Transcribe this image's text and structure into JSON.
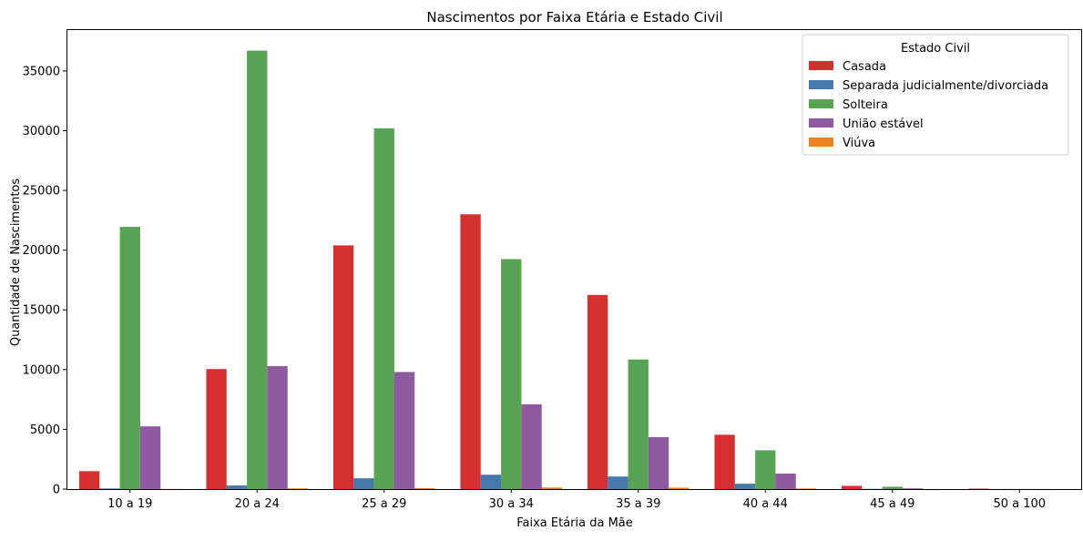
{
  "chart_data": {
    "type": "bar",
    "title": "Nascimentos por Faixa Etária e Estado Civil",
    "xlabel": "Faixa Etária da Mãe",
    "ylabel": "Quantidade de Nascimentos",
    "ylim": [
      0,
      38500
    ],
    "yticks": [
      0,
      5000,
      10000,
      15000,
      20000,
      25000,
      30000,
      35000
    ],
    "grid": false,
    "legend": {
      "title": "Estado Civil",
      "placement": "top-right"
    },
    "categories": [
      "10 a 19",
      "20 a 24",
      "25 a 29",
      "30 a 34",
      "35 a 39",
      "40 a 44",
      "45 a 49",
      "50 a 100"
    ],
    "series": [
      {
        "name": "Casada",
        "color": "#d62f2f",
        "values": [
          1500,
          10050,
          20400,
          23000,
          16250,
          4550,
          270,
          40
        ]
      },
      {
        "name": "Separada judicialmente/divorciada",
        "color": "#4578ad",
        "values": [
          50,
          300,
          900,
          1200,
          1050,
          450,
          20,
          5
        ]
      },
      {
        "name": "Solteira",
        "color": "#58a354",
        "values": [
          21950,
          36700,
          30200,
          19250,
          10850,
          3250,
          200,
          10
        ]
      },
      {
        "name": "União estável",
        "color": "#8f5aa0",
        "values": [
          5250,
          10300,
          9800,
          7100,
          4350,
          1300,
          60,
          5
        ]
      },
      {
        "name": "Viúva",
        "color": "#ed811f",
        "values": [
          10,
          60,
          80,
          130,
          120,
          50,
          5,
          2
        ]
      }
    ]
  }
}
